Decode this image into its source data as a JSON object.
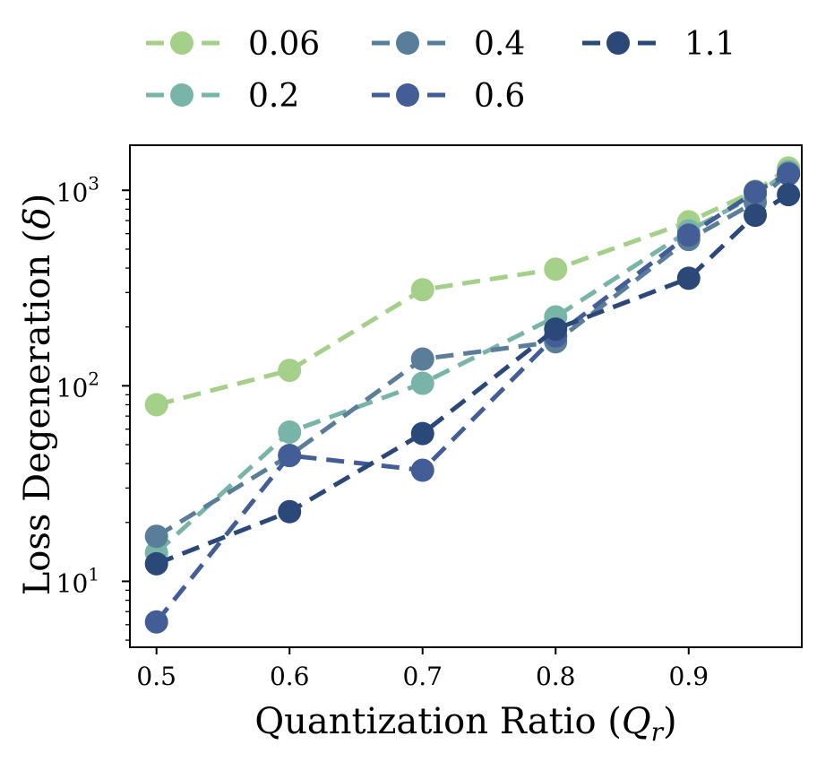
{
  "chart_data": {
    "type": "line",
    "title": "",
    "xlabel": "Quantization Ratio (Q_r)",
    "ylabel": "Loss Degeneration (δ)",
    "yscale": "log",
    "xlim": [
      0.48,
      0.985
    ],
    "ylim": [
      4.6,
      1700
    ],
    "x_ticks": [
      0.5,
      0.6,
      0.7,
      0.8,
      0.9
    ],
    "x_tick_labels": [
      "0.5",
      "0.6",
      "0.7",
      "0.8",
      "0.9"
    ],
    "y_ticks": [
      10,
      100,
      1000
    ],
    "y_tick_bases": [
      "10",
      "10",
      "10"
    ],
    "y_tick_exponents": [
      "1",
      "2",
      "3"
    ],
    "x": [
      0.5,
      0.6,
      0.7,
      0.8,
      0.9,
      0.95,
      0.975
    ],
    "legend_placement": "top, outside plot, 3 columns",
    "series": [
      {
        "name": "0.06",
        "color": "#a5d08a",
        "values": [
          80,
          120,
          310,
          395,
          690,
          990,
          1300
        ]
      },
      {
        "name": "0.2",
        "color": "#78b5a8",
        "values": [
          14,
          58,
          103,
          225,
          620,
          940,
          1250
        ]
      },
      {
        "name": "0.4",
        "color": "#5a7d99",
        "values": [
          17,
          44,
          137,
          168,
          560,
          870,
          1220
        ]
      },
      {
        "name": "0.6",
        "color": "#435e97",
        "values": [
          6.2,
          44,
          37,
          180,
          590,
          980,
          1210
        ]
      },
      {
        "name": "1.1",
        "color": "#2a4878",
        "values": [
          12.3,
          22.7,
          57,
          195,
          355,
          745,
          950
        ]
      }
    ]
  }
}
